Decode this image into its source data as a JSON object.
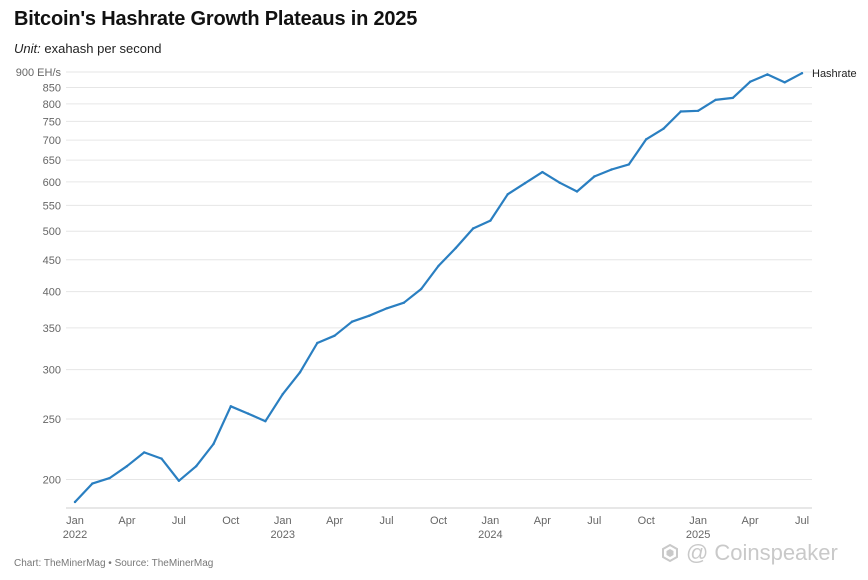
{
  "title": "Bitcoin's Hashrate Growth Plateaus in 2025",
  "subtitle": {
    "label": "Unit:",
    "text": "exahash per second"
  },
  "footer": "Chart: TheMinerMag • Source: TheMinerMag",
  "watermark": "Coinspeaker",
  "colors": {
    "line": "#2a7fc1",
    "grid": "#e6e6e6",
    "text": "#222222"
  },
  "chart_data": {
    "type": "line",
    "title": "Bitcoin's Hashrate Growth Plateaus in 2025",
    "subtitle": "Unit: exahash per second",
    "ylabel": "",
    "xlabel": "",
    "y_scale": "log",
    "ylim": [
      180,
      900
    ],
    "y_ticks": [
      200,
      250,
      300,
      350,
      400,
      450,
      500,
      550,
      600,
      650,
      700,
      750,
      800,
      850,
      900
    ],
    "y_tick_labels": [
      "200",
      "250",
      "300",
      "350",
      "400",
      "450",
      "500",
      "550",
      "600",
      "650",
      "700",
      "750",
      "800",
      "850",
      "900 EH/s"
    ],
    "x_ticks": [
      {
        "month": "Jan",
        "year": "2022",
        "x": "2022-01"
      },
      {
        "month": "Apr",
        "year": "",
        "x": "2022-04"
      },
      {
        "month": "Jul",
        "year": "",
        "x": "2022-07"
      },
      {
        "month": "Oct",
        "year": "",
        "x": "2022-10"
      },
      {
        "month": "Jan",
        "year": "2023",
        "x": "2023-01"
      },
      {
        "month": "Apr",
        "year": "",
        "x": "2023-04"
      },
      {
        "month": "Jul",
        "year": "",
        "x": "2023-07"
      },
      {
        "month": "Oct",
        "year": "",
        "x": "2023-10"
      },
      {
        "month": "Jan",
        "year": "2024",
        "x": "2024-01"
      },
      {
        "month": "Apr",
        "year": "",
        "x": "2024-04"
      },
      {
        "month": "Jul",
        "year": "",
        "x": "2024-07"
      },
      {
        "month": "Oct",
        "year": "",
        "x": "2024-10"
      },
      {
        "month": "Jan",
        "year": "2025",
        "x": "2025-01"
      },
      {
        "month": "Apr",
        "year": "",
        "x": "2025-04"
      },
      {
        "month": "Jul",
        "year": "",
        "x": "2025-07"
      }
    ],
    "grid": true,
    "legend": "inline-right",
    "series": [
      {
        "name": "Hashrate",
        "x": [
          "2022-01",
          "2022-02",
          "2022-03",
          "2022-04",
          "2022-05",
          "2022-06",
          "2022-07",
          "2022-08",
          "2022-09",
          "2022-10",
          "2022-11",
          "2022-12",
          "2023-01",
          "2023-02",
          "2023-03",
          "2023-04",
          "2023-05",
          "2023-06",
          "2023-07",
          "2023-08",
          "2023-09",
          "2023-10",
          "2023-11",
          "2023-12",
          "2024-01",
          "2024-02",
          "2024-03",
          "2024-04",
          "2024-05",
          "2024-06",
          "2024-07",
          "2024-08",
          "2024-09",
          "2024-10",
          "2024-11",
          "2024-12",
          "2025-01",
          "2025-02",
          "2025-03",
          "2025-04",
          "2025-05",
          "2025-06",
          "2025-07"
        ],
        "values": [
          184,
          197,
          201,
          210,
          221,
          216,
          199,
          210,
          228,
          262,
          255,
          248,
          274,
          297,
          331,
          340,
          358,
          366,
          376,
          384,
          404,
          440,
          470,
          505,
          520,
          573,
          597,
          622,
          598,
          579,
          612,
          628,
          640,
          702,
          730,
          778,
          780,
          812,
          818,
          868,
          892,
          866,
          896
        ]
      }
    ]
  }
}
